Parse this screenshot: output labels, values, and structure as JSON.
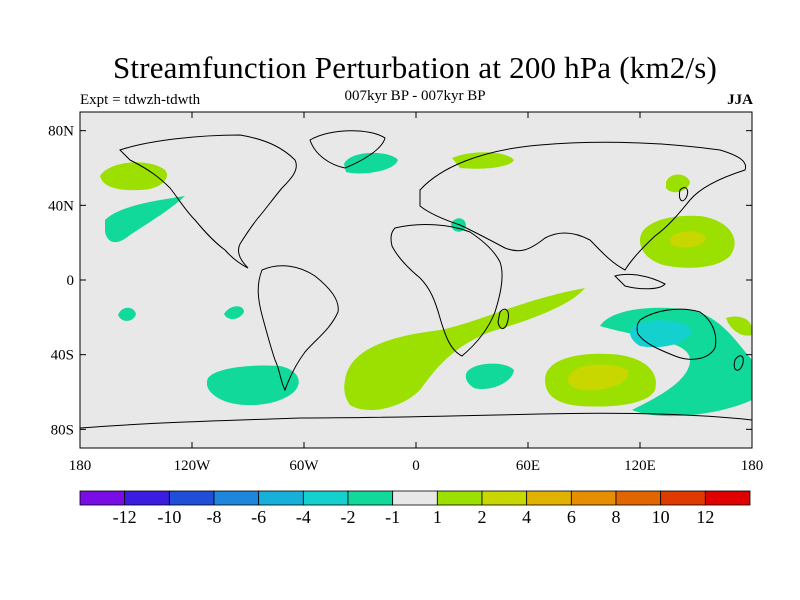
{
  "title": "Streamfunction Perturbation at 200 hPa (km2/s)",
  "left_label": "Expt = tdwzh-tdwth",
  "center_label": "007kyr BP - 007kyr BP",
  "right_label": "JJA",
  "map": {
    "background": "#e8e8e8",
    "projection": "cylindrical-equidistant",
    "lon_range": [
      -180,
      180
    ],
    "lat_range": [
      -90,
      90
    ],
    "lat_ticks": [
      {
        "label": "80N",
        "lat": 80
      },
      {
        "label": "40N",
        "lat": 40
      },
      {
        "label": "0",
        "lat": 0
      },
      {
        "label": "40S",
        "lat": -40
      },
      {
        "label": "80S",
        "lat": -80
      }
    ],
    "lon_ticks": [
      {
        "label": "180",
        "lon": -180
      },
      {
        "label": "120W",
        "lon": -120
      },
      {
        "label": "60W",
        "lon": -60
      },
      {
        "label": "0",
        "lon": 0
      },
      {
        "label": "60E",
        "lon": 60
      },
      {
        "label": "120E",
        "lon": 120
      },
      {
        "label": "180",
        "lon": 180
      }
    ]
  },
  "colorbar": {
    "colors": [
      "#7a0ce6",
      "#3a1de0",
      "#1f4fd8",
      "#1f86dd",
      "#17b0d8",
      "#14d0cf",
      "#11d99a",
      "#e8e8e8",
      "#9be000",
      "#c9d700",
      "#e1b200",
      "#e58e00",
      "#e26600",
      "#df3a00",
      "#e00000"
    ],
    "labels": [
      "-12",
      "-10",
      "-8",
      "-6",
      "-4",
      "-2",
      "-1",
      "1",
      "2",
      "4",
      "6",
      "8",
      "10",
      "12"
    ]
  }
}
